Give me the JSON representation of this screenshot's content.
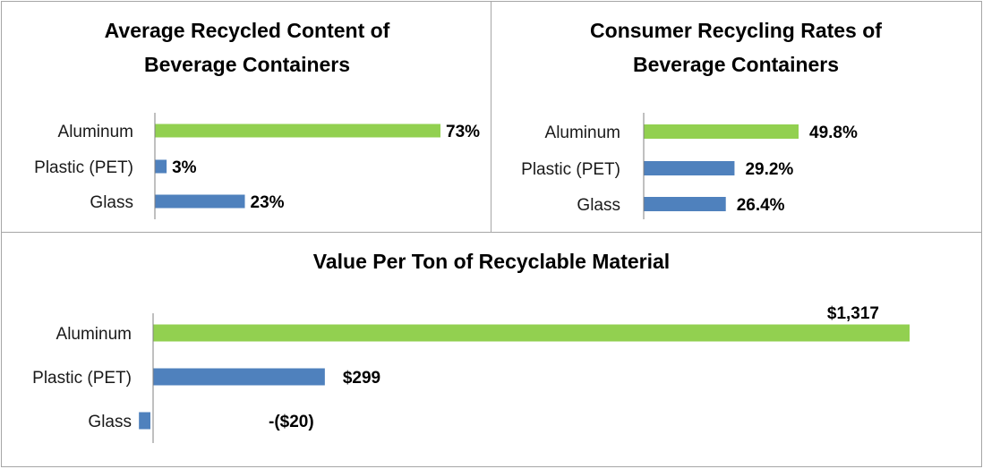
{
  "colors": {
    "highlight": "#92d050",
    "bar": "#4f81bd",
    "negative_label": "#ff0000",
    "axis": "#808080"
  },
  "chart_data": [
    {
      "type": "bar",
      "orientation": "horizontal",
      "title": [
        "Average Recycled Content of",
        "Beverage Containers"
      ],
      "categories": [
        "Aluminum",
        "Plastic (PET)",
        "Glass"
      ],
      "values": [
        73,
        3,
        23
      ],
      "value_labels": [
        "73%",
        "3%",
        "23%"
      ],
      "xlim": [
        0,
        73
      ],
      "grid": false,
      "legend": "none"
    },
    {
      "type": "bar",
      "orientation": "horizontal",
      "title": [
        "Consumer Recycling Rates of",
        "Beverage Containers"
      ],
      "categories": [
        "Aluminum",
        "Plastic (PET)",
        "Glass"
      ],
      "values": [
        49.8,
        29.2,
        26.4
      ],
      "value_labels": [
        "49.8%",
        "29.2%",
        "26.4%"
      ],
      "xlim": [
        0,
        49.8
      ],
      "grid": false,
      "legend": "none"
    },
    {
      "type": "bar",
      "orientation": "horizontal",
      "title": [
        "Value Per Ton of Recyclable Material"
      ],
      "categories": [
        "Aluminum",
        "Plastic (PET)",
        "Glass"
      ],
      "values": [
        1317,
        299,
        -20
      ],
      "value_labels": [
        "$1,317",
        "$299",
        "-($20)"
      ],
      "xlim": [
        -20,
        1317
      ],
      "grid": false,
      "legend": "none"
    }
  ]
}
